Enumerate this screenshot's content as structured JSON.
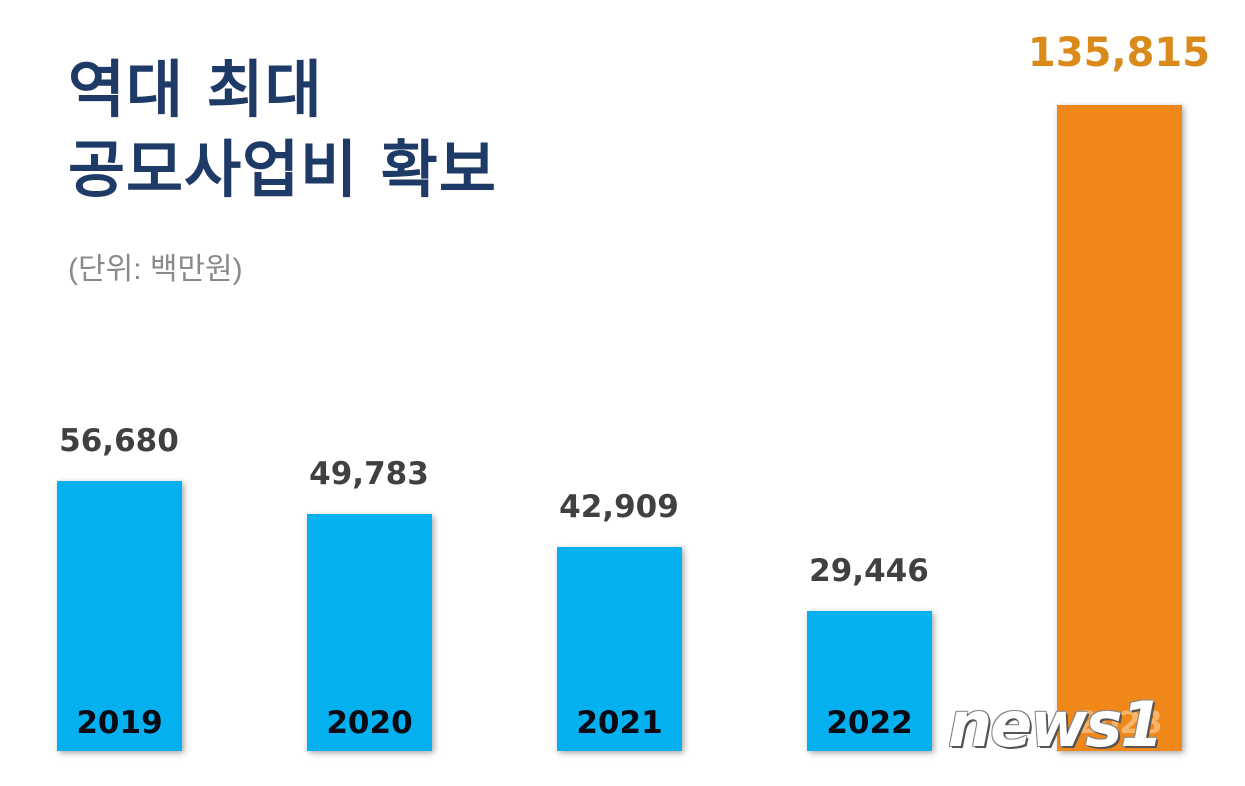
{
  "title": {
    "line1": "역대 최대",
    "line2": "공모사업비 확보"
  },
  "unit_label": "(단위: 백만원)",
  "watermark": "news1",
  "colors": {
    "title": "#1e3a66",
    "bar_default": "#05b0ee",
    "bar_highlight": "#f08719",
    "value_default": "#404040",
    "value_highlight": "#d98a1a",
    "unit": "#8a8a8a"
  },
  "chart_data": {
    "type": "bar",
    "title": "역대 최대 공모사업비 확보",
    "subtitle": "(단위: 백만원)",
    "xlabel": "",
    "ylabel": "",
    "categories": [
      "2019",
      "2020",
      "2021",
      "2022",
      "2023"
    ],
    "values": [
      56680,
      49783,
      42909,
      29446,
      135815
    ],
    "value_labels": [
      "56,680",
      "49,783",
      "42,909",
      "29,446",
      "135,815"
    ],
    "highlight_index": 4,
    "grid": false,
    "legend": "none",
    "category_labels_inside_bars": true
  }
}
